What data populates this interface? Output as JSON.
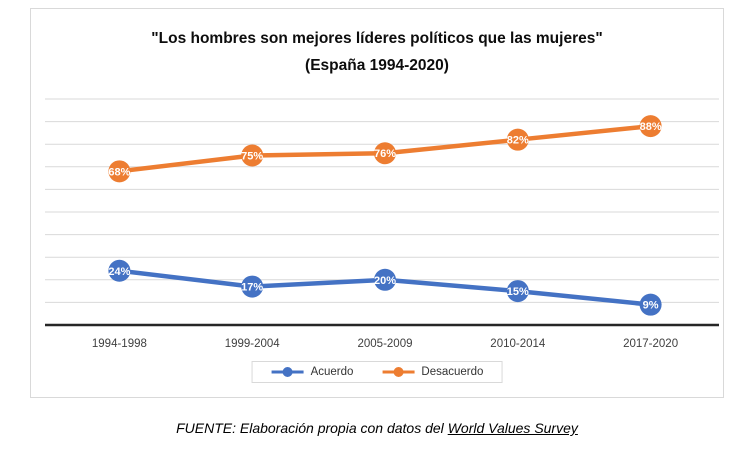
{
  "chart_data": {
    "type": "line",
    "title": "\"Los hombres son mejores líderes políticos que las mujeres\" (España 1994-2020)",
    "title_lines": [
      "\"Los hombres son mejores líderes políticos que las mujeres\"",
      "(España 1994-2020)"
    ],
    "categories": [
      "1994-1998",
      "1999-2004",
      "2005-2009",
      "2010-2014",
      "2017-2020"
    ],
    "series": [
      {
        "name": "Acuerdo",
        "values": [
          24,
          17,
          20,
          15,
          9
        ],
        "color": "#4472C4"
      },
      {
        "name": "Desacuerdo",
        "values": [
          68,
          75,
          76,
          82,
          88
        ],
        "color": "#ED7D31"
      }
    ],
    "data_labels_suffix": "%",
    "xlabel": "",
    "ylabel": "",
    "ylim": [
      0,
      100
    ],
    "grid": true,
    "gridline_step": 10,
    "gridline_color": "#D9D9D9",
    "axis_color": "#262626",
    "tick_label_color": "#404040",
    "legend_position": "bottom"
  },
  "footer": {
    "prefix": "FUENTE: Elaboración propia con datos del ",
    "underlined": "World Values Survey"
  }
}
